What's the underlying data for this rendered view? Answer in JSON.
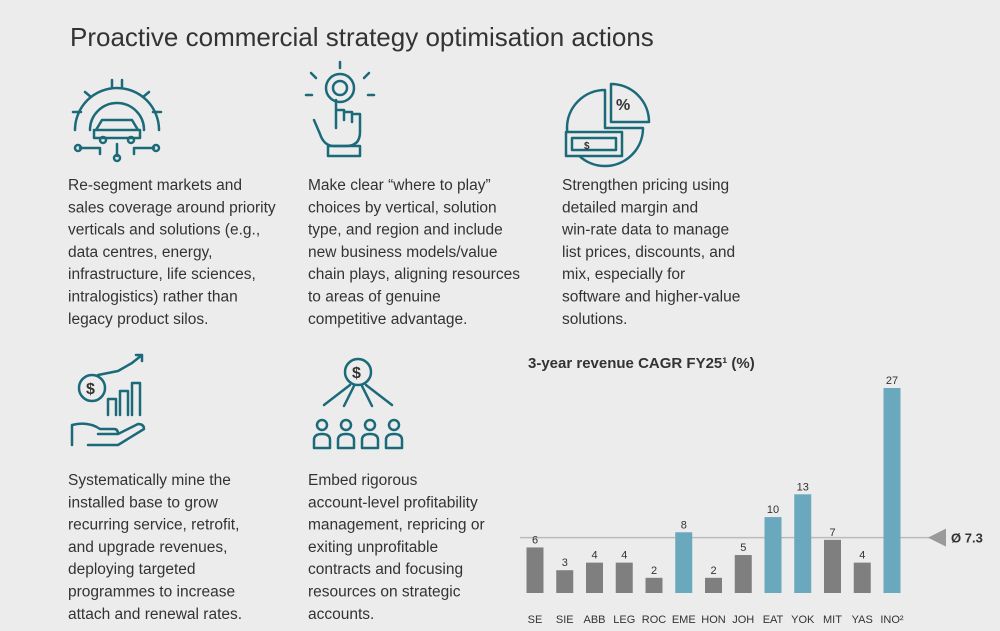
{
  "header": {
    "title": "Proactive commercial strategy optimisation actions"
  },
  "cards": [
    {
      "lines": [
        "Re-segment markets and",
        "sales coverage around priority",
        "verticals and solutions (e.g.,",
        "data centres, energy,",
        "infrastructure, life sciences,",
        "intralogistics) rather than",
        "legacy product silos."
      ]
    },
    {
      "lines": [
        "Make clear “where to play”",
        "choices by vertical, solution",
        "type, and region and include",
        "new business models/value",
        "chain plays, aligning resources",
        "to areas of genuine",
        "competitive advantage."
      ]
    },
    {
      "lines": [
        "Strengthen pricing using",
        "detailed margin and",
        "win-rate data to manage",
        "list prices, discounts, and",
        "mix, especially for",
        "software and higher-value",
        "solutions."
      ]
    },
    {
      "lines": [
        "Systematically mine the",
        "installed base to grow",
        "recurring service, retrofit,",
        "and upgrade revenues,",
        "deploying targeted",
        "programmes to increase",
        "attach and renewal rates."
      ]
    },
    {
      "lines": [
        "Embed rigorous",
        "account-level profitability",
        "management, repricing or",
        "exiting unprofitable",
        "contracts and focusing",
        "resources on strategic",
        "accounts."
      ]
    }
  ],
  "chart_data": {
    "type": "bar",
    "title": "3-year revenue CAGR FY25¹ (%)",
    "categories": [
      "SE",
      "SIE",
      "ABB",
      "LEG",
      "ROC",
      "EME",
      "HON",
      "JOH",
      "EAT",
      "YOK",
      "MIT",
      "YAS",
      "INO²"
    ],
    "values": [
      6,
      3,
      4,
      4,
      2,
      8,
      2,
      5,
      10,
      13,
      7,
      4,
      27
    ],
    "colors": [
      "#7f7f7f",
      "#7f7f7f",
      "#7f7f7f",
      "#7f7f7f",
      "#7f7f7f",
      "#6aa9bd",
      "#7f7f7f",
      "#7f7f7f",
      "#6aa9bd",
      "#6aa9bd",
      "#7f7f7f",
      "#7f7f7f",
      "#6aa9bd"
    ],
    "ylim": [
      0,
      27
    ],
    "average": {
      "value": 7.3,
      "label": "Ø 7.3"
    }
  }
}
